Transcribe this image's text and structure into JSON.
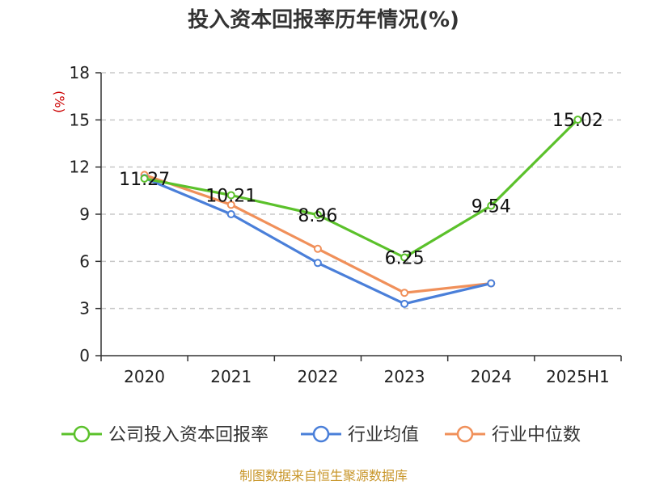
{
  "chart_data": {
    "type": "line",
    "title": "投入资本回报率历年情况(%)",
    "ylabel": "(%)",
    "categories": [
      "2020",
      "2021",
      "2022",
      "2023",
      "2024",
      "2025H1"
    ],
    "ylim": [
      0,
      18
    ],
    "yticks": [
      0,
      3,
      6,
      9,
      12,
      15,
      18
    ],
    "grid": true,
    "legend_position": "bottom",
    "series": [
      {
        "name": "公司投入资本回报率",
        "color": "#5bc12b",
        "values": [
          11.27,
          10.21,
          8.96,
          6.25,
          9.54,
          15.02
        ],
        "labels": [
          "11.27",
          "10.21",
          "8.96",
          "6.25",
          "9.54",
          "15.02"
        ]
      },
      {
        "name": "行业均值",
        "color": "#4a7fd9",
        "values": [
          11.3,
          9.0,
          5.9,
          3.3,
          4.6,
          null
        ]
      },
      {
        "name": "行业中位数",
        "color": "#f0905a",
        "values": [
          11.5,
          9.6,
          6.8,
          4.0,
          4.6,
          null
        ]
      }
    ]
  },
  "source": "制图数据来自恒生聚源数据库"
}
